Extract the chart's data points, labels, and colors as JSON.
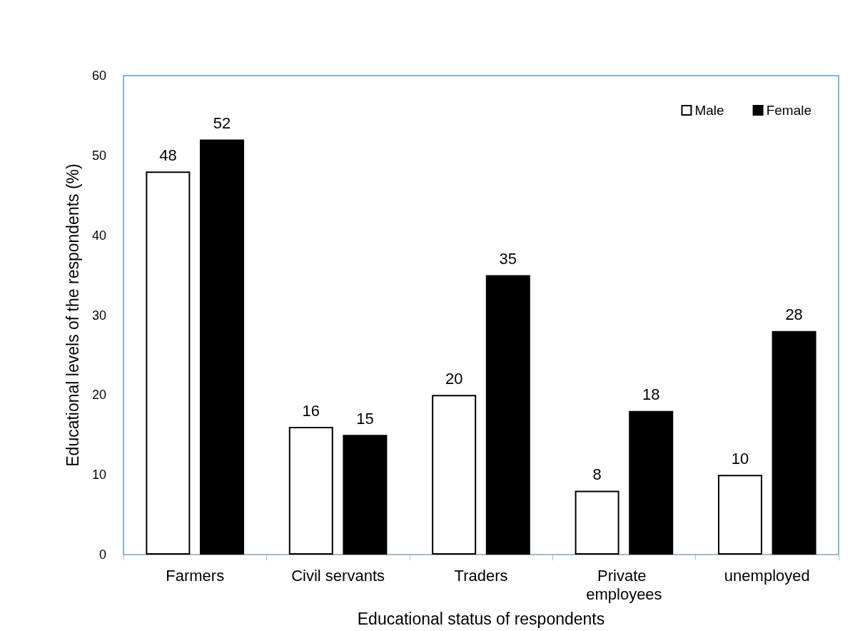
{
  "chart_data": {
    "type": "bar",
    "xlabel": "Educational status of respondents",
    "ylabel": "Educational levels of the respondents (%)",
    "categories": [
      "Farmers",
      "Civil servants",
      "Traders",
      "Private employees",
      "unemployed"
    ],
    "series": [
      {
        "name": "Male",
        "color": "#ffffff",
        "values": [
          48,
          16,
          20,
          8,
          10
        ]
      },
      {
        "name": "Female",
        "color": "#000000",
        "values": [
          52,
          15,
          35,
          18,
          28
        ]
      }
    ],
    "ylim": [
      0,
      60
    ],
    "yticks": [
      0,
      10,
      20,
      30,
      40,
      50,
      60
    ],
    "grid": false,
    "legend": "top right",
    "data_labels": true
  }
}
